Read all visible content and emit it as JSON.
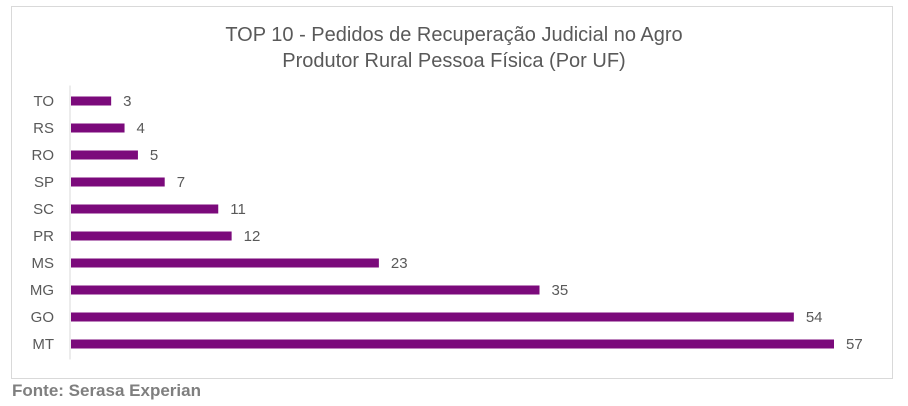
{
  "chart_data": {
    "type": "bar",
    "orientation": "horizontal",
    "title": [
      "TOP 10 - Pedidos de Recuperação Judicial no Agro",
      "Produtor Rural Pessoa Física (Por UF)"
    ],
    "categories": [
      "TO",
      "RS",
      "RO",
      "SP",
      "SC",
      "PR",
      "MS",
      "MG",
      "GO",
      "MT"
    ],
    "values": [
      3,
      4,
      5,
      7,
      11,
      12,
      23,
      35,
      54,
      57
    ],
    "xlim": [
      0,
      57
    ],
    "bar_color": "#7b0a7b",
    "grid": false,
    "legend": false
  },
  "source": "Fonte: Serasa Experian"
}
